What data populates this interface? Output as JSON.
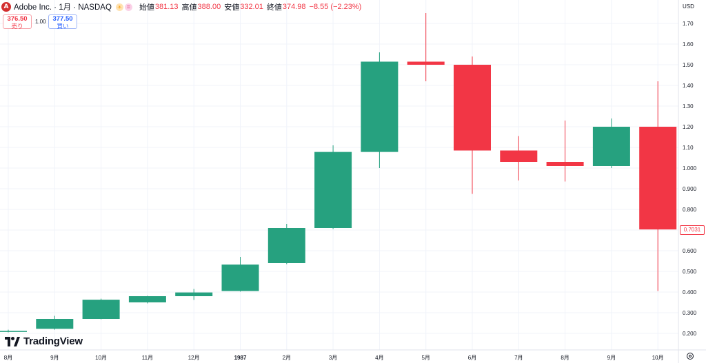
{
  "header": {
    "logo_letter": "A",
    "symbol": "Adobe Inc. · 1月 · NASDAQ",
    "badge_sun": "☀",
    "badge_eq": "=",
    "ohlc": [
      {
        "label": "始値",
        "value": "381.13"
      },
      {
        "label": "高値",
        "value": "388.00"
      },
      {
        "label": "安値",
        "value": "332.01"
      },
      {
        "label": "終値",
        "value": "374.98"
      }
    ],
    "change": "−8.55 (−2.23%)"
  },
  "trade": {
    "sell_price": "376.50",
    "sell_label": "売り",
    "spread": "1.00",
    "buy_price": "377.50",
    "buy_label": "買い"
  },
  "currency": "USD",
  "brand": "TradingView",
  "last_price_tag": "0.7031",
  "colors": {
    "up": "#26a17f",
    "down": "#f23645",
    "grid": "#f0f3fa"
  },
  "chart_data": {
    "type": "candlestick",
    "title": "",
    "ylim": [
      0.175,
      1.765
    ],
    "y_ticks": [
      "0.200",
      "0.300",
      "0.400",
      "0.500",
      "0.600",
      "0.700",
      "0.800",
      "0.900",
      "1.000",
      "1.10",
      "1.20",
      "1.30",
      "1.40",
      "1.50",
      "1.60",
      "1.70"
    ],
    "x_ticks": [
      "8月",
      "9月",
      "10月",
      "11月",
      "12月",
      "1987",
      "2月",
      "3月",
      "4月",
      "5月",
      "6月",
      "7月",
      "8月",
      "9月",
      "10月"
    ],
    "x_ticks_bold": [
      false,
      false,
      false,
      false,
      false,
      true,
      false,
      false,
      false,
      false,
      false,
      false,
      false,
      false,
      false
    ],
    "candles": [
      {
        "date": "1986-08",
        "open": 0.21,
        "high": 0.218,
        "low": 0.205,
        "close": 0.212
      },
      {
        "date": "1986-09",
        "open": 0.222,
        "high": 0.285,
        "low": 0.218,
        "close": 0.27
      },
      {
        "date": "1986-10",
        "open": 0.27,
        "high": 0.368,
        "low": 0.268,
        "close": 0.363
      },
      {
        "date": "1986-11",
        "open": 0.35,
        "high": 0.382,
        "low": 0.345,
        "close": 0.38
      },
      {
        "date": "1986-12",
        "open": 0.38,
        "high": 0.415,
        "low": 0.362,
        "close": 0.398
      },
      {
        "date": "1987-01",
        "open": 0.405,
        "high": 0.57,
        "low": 0.402,
        "close": 0.533
      },
      {
        "date": "1987-02",
        "open": 0.54,
        "high": 0.73,
        "low": 0.535,
        "close": 0.71
      },
      {
        "date": "1987-03",
        "open": 0.71,
        "high": 1.11,
        "low": 0.705,
        "close": 1.078
      },
      {
        "date": "1987-04",
        "open": 1.078,
        "high": 1.56,
        "low": 1.0,
        "close": 1.515
      },
      {
        "date": "1987-05",
        "open": 1.515,
        "high": 1.75,
        "low": 1.42,
        "close": 1.5
      },
      {
        "date": "1987-06",
        "open": 1.5,
        "high": 1.54,
        "low": 0.875,
        "close": 1.085
      },
      {
        "date": "1987-07",
        "open": 1.085,
        "high": 1.155,
        "low": 0.94,
        "close": 1.03
      },
      {
        "date": "1987-08",
        "open": 1.03,
        "high": 1.23,
        "low": 0.935,
        "close": 1.01
      },
      {
        "date": "1987-09",
        "open": 1.01,
        "high": 1.24,
        "low": 1.0,
        "close": 1.2
      },
      {
        "date": "1987-10",
        "open": 1.2,
        "high": 1.42,
        "low": 0.405,
        "close": 0.703
      }
    ]
  }
}
